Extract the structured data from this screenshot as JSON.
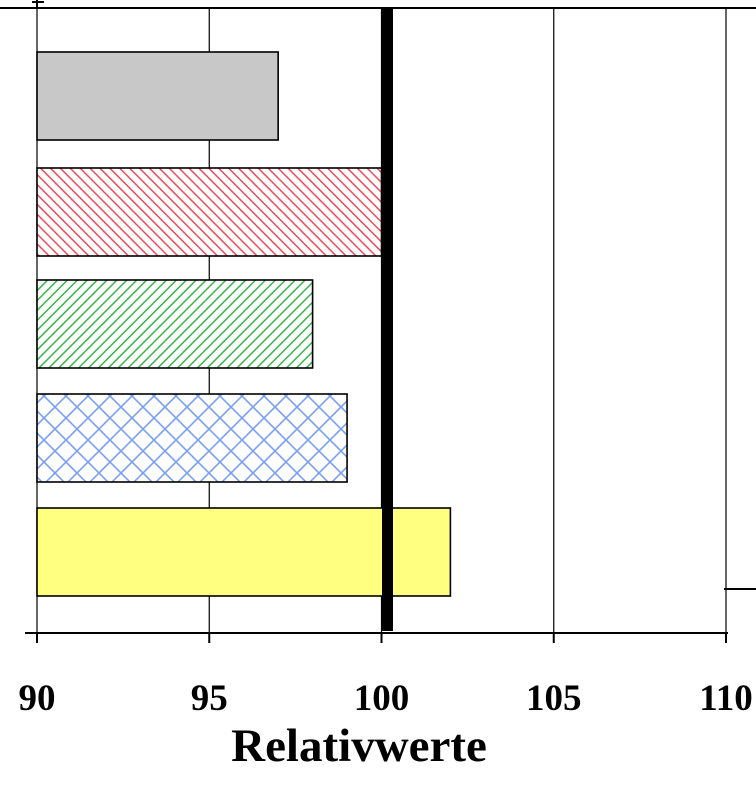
{
  "chart_data": {
    "type": "bar",
    "orientation": "horizontal",
    "xlabel": "Relativwerte",
    "xlim": [
      90,
      110
    ],
    "xticks": [
      "90",
      "95",
      "100",
      "105",
      "110"
    ],
    "grid": true,
    "reference_line": 100,
    "bars": [
      {
        "value": 97,
        "fill": "#c8c8c8",
        "pattern": "solid"
      },
      {
        "value": 100,
        "fill": "#f24a5a",
        "pattern": "diagonal-hatch"
      },
      {
        "value": 98,
        "fill": "#39b54a",
        "pattern": "diagonal-hatch"
      },
      {
        "value": 99,
        "fill": "#7b9ff0",
        "pattern": "crosshatch"
      },
      {
        "value": 102,
        "fill": "#ffff80",
        "pattern": "solid"
      }
    ]
  }
}
